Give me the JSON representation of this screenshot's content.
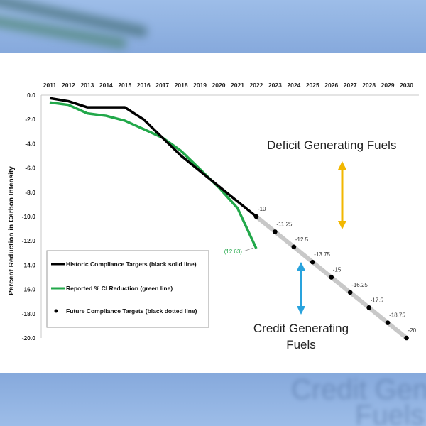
{
  "chart_data": {
    "type": "line",
    "ylabel": "Percent Reduction in Carbon Intensity",
    "xlabel": "",
    "x": [
      2011,
      2012,
      2013,
      2014,
      2015,
      2016,
      2017,
      2018,
      2019,
      2020,
      2021,
      2022,
      2023,
      2024,
      2025,
      2026,
      2027,
      2028,
      2029,
      2030
    ],
    "y_ticks": [
      "0.0",
      "-2.0",
      "-4.0",
      "-6.0",
      "-8.0",
      "-10.0",
      "-12.0",
      "-14.0",
      "-16.0",
      "-18.0",
      "-20.0"
    ],
    "ylim": [
      -20,
      0
    ],
    "grid": false,
    "axis_color": "#c8c8c8",
    "series": [
      {
        "name": "Historic Compliance Targets (black solid line)",
        "color": "#000000",
        "style": "solid",
        "x": [
          2011,
          2012,
          2013,
          2014,
          2015,
          2016,
          2017,
          2018,
          2019,
          2020,
          2021,
          2022
        ],
        "values": [
          -0.25,
          -0.5,
          -1.0,
          -1.0,
          -1.0,
          -2.0,
          -3.5,
          -5.0,
          -6.25,
          -7.5,
          -8.75,
          -10.0
        ]
      },
      {
        "name": "Reported % CI Reduction (green line)",
        "color": "#22a84a",
        "style": "solid",
        "x": [
          2011,
          2012,
          2013,
          2014,
          2015,
          2016,
          2017,
          2018,
          2019,
          2020,
          2021,
          2022
        ],
        "values": [
          -0.6,
          -0.8,
          -1.5,
          -1.7,
          -2.1,
          -2.8,
          -3.5,
          -4.6,
          -6.1,
          -7.6,
          -9.3,
          -12.63
        ]
      },
      {
        "name": "Future Compliance Targets (black dotted line)",
        "color": "#000000",
        "style": "dotted",
        "line_color": "#c8c8c8",
        "x": [
          2022,
          2023,
          2024,
          2025,
          2026,
          2027,
          2028,
          2029,
          2030
        ],
        "values": [
          -10,
          -11.25,
          -12.5,
          -13.75,
          -15,
          -16.25,
          -17.5,
          -18.75,
          -20
        ]
      }
    ],
    "point_labels": [
      "-10",
      "-11.25",
      "-12.5",
      "-13.75",
      "-15",
      "-16.25",
      "-17.5",
      "-18.75",
      "-20"
    ],
    "green_end_label": "(12.63)",
    "legend_position": "bottom-left",
    "annotations": {
      "deficit": "Deficit Generating Fuels",
      "credit_line1": "Credit Generating",
      "credit_line2": "Fuels",
      "deficit_arrow_color": "#f2b700",
      "credit_arrow_color": "#29a3dd"
    }
  },
  "background": {
    "ghost_text_line1": "Credit Gene",
    "ghost_text_line2": "Fuels"
  }
}
